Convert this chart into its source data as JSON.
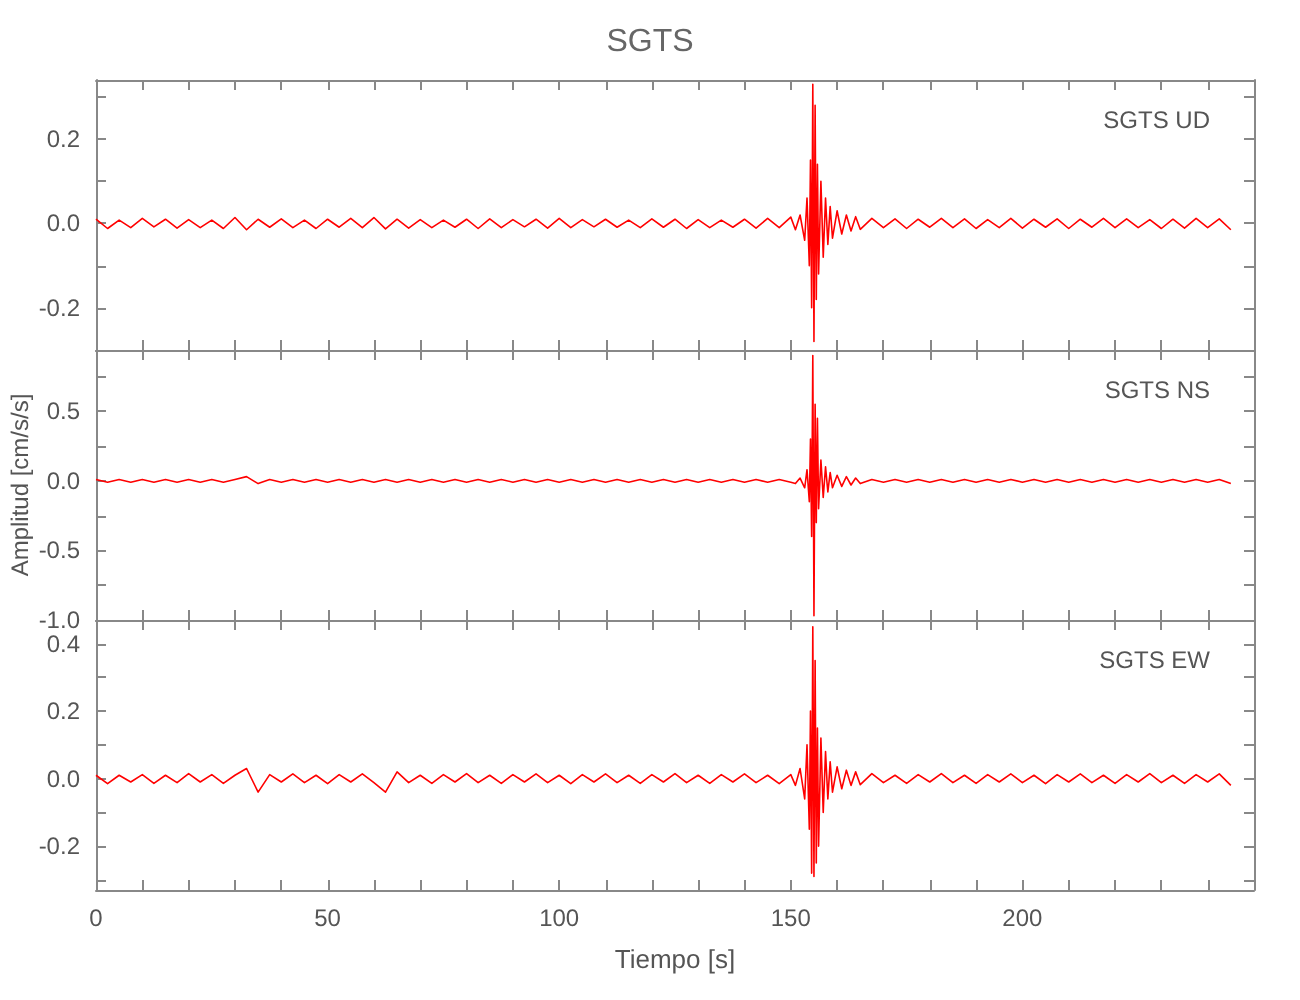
{
  "chart_data": [
    {
      "type": "line",
      "title": "SGTS",
      "annotations": [
        "SGTS UD"
      ],
      "tick_labels": "y",
      "grid": false,
      "xlim": [
        0,
        250
      ],
      "xticks": [
        0,
        {
          "value": 10,
          "label": null
        },
        {
          "value": 20,
          "label": null
        },
        {
          "value": 30,
          "label": null
        },
        {
          "value": 40,
          "label": null
        },
        50,
        {
          "value": 60,
          "label": null
        },
        {
          "value": 70,
          "label": null
        },
        {
          "value": 80,
          "label": null
        },
        {
          "value": 90,
          "label": null
        },
        100,
        {
          "value": 110,
          "label": null
        },
        {
          "value": 120,
          "label": null
        },
        {
          "value": 130,
          "label": null
        },
        {
          "value": 140,
          "label": null
        },
        150,
        {
          "value": 160,
          "label": null
        },
        {
          "value": 170,
          "label": null
        },
        {
          "value": 180,
          "label": null
        },
        {
          "value": 190,
          "label": null
        },
        200,
        {
          "value": 210,
          "label": null
        },
        {
          "value": 220,
          "label": null
        },
        {
          "value": 230,
          "label": null
        },
        {
          "value": 240,
          "label": null
        }
      ],
      "ylim": [
        -0.3,
        0.34
      ],
      "yticks": [
        {
          "value": -0.3,
          "label": null
        },
        -0.2,
        {
          "value": -0.1,
          "label": null
        },
        {
          "value": 0,
          "label": "0.0"
        },
        {
          "value": 0.1,
          "label": null
        },
        0.2,
        {
          "value": 0.3,
          "label": null
        }
      ],
      "x": [
        0,
        2.5,
        5,
        7.5,
        10,
        12.5,
        15,
        17.5,
        20,
        22.5,
        25,
        27.5,
        30,
        32.5,
        35,
        37.5,
        40,
        42.5,
        45,
        47.5,
        50,
        52.5,
        55,
        57.5,
        60,
        62.5,
        65,
        67.5,
        70,
        72.5,
        75,
        77.5,
        80,
        82.5,
        85,
        87.5,
        90,
        92.5,
        95,
        97.5,
        100,
        102.5,
        105,
        107.5,
        110,
        112.5,
        115,
        117.5,
        120,
        122.5,
        125,
        127.5,
        130,
        132.5,
        135,
        137.5,
        140,
        142.5,
        145,
        147.5,
        150,
        151,
        152,
        153,
        153.5,
        154,
        154.25,
        154.5,
        154.75,
        155,
        155.25,
        155.5,
        155.75,
        156,
        156.5,
        157,
        157.5,
        158,
        158.5,
        159,
        160,
        161,
        162,
        163,
        164,
        165,
        167.5,
        170,
        172.5,
        175,
        177.5,
        180,
        182.5,
        185,
        187.5,
        190,
        192.5,
        195,
        197.5,
        200,
        202.5,
        205,
        207.5,
        210,
        212.5,
        215,
        217.5,
        220,
        222.5,
        225,
        227.5,
        230,
        232.5,
        235,
        237.5,
        240,
        242.5,
        245
      ],
      "series": [
        {
          "color": "#ff0000",
          "values": [
            0.01,
            -0.012,
            0.008,
            -0.01,
            0.012,
            -0.008,
            0.01,
            -0.011,
            0.009,
            -0.01,
            0.008,
            -0.012,
            0.014,
            -0.015,
            0.01,
            -0.009,
            0.011,
            -0.01,
            0.008,
            -0.012,
            0.01,
            -0.009,
            0.012,
            -0.01,
            0.014,
            -0.013,
            0.01,
            -0.011,
            0.009,
            -0.01,
            0.008,
            -0.009,
            0.01,
            -0.012,
            0.011,
            -0.01,
            0.009,
            -0.008,
            0.01,
            -0.011,
            0.012,
            -0.01,
            0.009,
            -0.008,
            0.01,
            -0.009,
            0.008,
            -0.01,
            0.011,
            -0.009,
            0.01,
            -0.012,
            0.009,
            -0.01,
            0.008,
            -0.009,
            0.01,
            -0.011,
            0.012,
            -0.01,
            0.015,
            -0.015,
            0.02,
            -0.04,
            0.06,
            -0.1,
            0.15,
            -0.2,
            0.33,
            -0.28,
            0.28,
            -0.18,
            0.14,
            -0.12,
            0.1,
            -0.08,
            0.06,
            -0.05,
            0.04,
            -0.035,
            0.03,
            -0.025,
            0.02,
            -0.018,
            0.016,
            -0.014,
            0.012,
            -0.01,
            0.011,
            -0.012,
            0.01,
            -0.009,
            0.012,
            -0.01,
            0.011,
            -0.012,
            0.009,
            -0.01,
            0.012,
            -0.011,
            0.01,
            -0.009,
            0.011,
            -0.012,
            0.01,
            -0.009,
            0.012,
            -0.01,
            0.011,
            -0.01,
            0.009,
            -0.012,
            0.01,
            -0.011,
            0.012,
            -0.01,
            0.011,
            -0.015
          ]
        }
      ]
    },
    {
      "type": "line",
      "ylabel": "Amplitud [cm/s/s]",
      "annotations": [
        "SGTS NS"
      ],
      "tick_labels": "y",
      "grid": false,
      "xlim": [
        0,
        250
      ],
      "xticks": [
        0,
        {
          "value": 10,
          "label": null
        },
        {
          "value": 20,
          "label": null
        },
        {
          "value": 30,
          "label": null
        },
        {
          "value": 40,
          "label": null
        },
        50,
        {
          "value": 60,
          "label": null
        },
        {
          "value": 70,
          "label": null
        },
        {
          "value": 80,
          "label": null
        },
        {
          "value": 90,
          "label": null
        },
        100,
        {
          "value": 110,
          "label": null
        },
        {
          "value": 120,
          "label": null
        },
        {
          "value": 130,
          "label": null
        },
        {
          "value": 140,
          "label": null
        },
        150,
        {
          "value": 160,
          "label": null
        },
        {
          "value": 170,
          "label": null
        },
        {
          "value": 180,
          "label": null
        },
        {
          "value": 190,
          "label": null
        },
        200,
        {
          "value": 210,
          "label": null
        },
        {
          "value": 220,
          "label": null
        },
        {
          "value": 230,
          "label": null
        },
        {
          "value": 240,
          "label": null
        }
      ],
      "ylim": [
        -1.0,
        0.94
      ],
      "yticks": [
        {
          "value": -1,
          "label": "-1.0"
        },
        {
          "value": -0.75,
          "label": null
        },
        -0.5,
        {
          "value": -0.25,
          "label": null
        },
        {
          "value": 0,
          "label": "0.0"
        },
        {
          "value": 0.25,
          "label": null
        },
        0.5,
        {
          "value": 0.75,
          "label": null
        }
      ],
      "x": [
        0,
        2.5,
        5,
        7.5,
        10,
        12.5,
        15,
        17.5,
        20,
        22.5,
        25,
        27.5,
        30,
        32.5,
        35,
        37.5,
        40,
        42.5,
        45,
        47.5,
        50,
        52.5,
        55,
        57.5,
        60,
        62.5,
        65,
        67.5,
        70,
        72.5,
        75,
        77.5,
        80,
        82.5,
        85,
        87.5,
        90,
        92.5,
        95,
        97.5,
        100,
        102.5,
        105,
        107.5,
        110,
        112.5,
        115,
        117.5,
        120,
        122.5,
        125,
        127.5,
        130,
        132.5,
        135,
        137.5,
        140,
        142.5,
        145,
        147.5,
        150,
        151,
        152,
        153,
        153.5,
        154,
        154.25,
        154.5,
        154.75,
        155,
        155.25,
        155.5,
        155.75,
        156,
        156.5,
        157,
        157.5,
        158,
        158.5,
        159,
        160,
        161,
        162,
        163,
        164,
        165,
        167.5,
        170,
        172.5,
        175,
        177.5,
        180,
        182.5,
        185,
        187.5,
        190,
        192.5,
        195,
        197.5,
        200,
        202.5,
        205,
        207.5,
        210,
        212.5,
        215,
        217.5,
        220,
        222.5,
        225,
        227.5,
        230,
        232.5,
        235,
        237.5,
        240,
        242.5,
        245
      ],
      "series": [
        {
          "color": "#ff0000",
          "values": [
            0.01,
            -0.01,
            0.01,
            -0.01,
            0.01,
            -0.01,
            0.01,
            -0.01,
            0.01,
            -0.01,
            0.01,
            -0.01,
            0.01,
            0.03,
            -0.02,
            0.01,
            -0.01,
            0.01,
            -0.01,
            0.01,
            -0.01,
            0.01,
            -0.01,
            0.01,
            -0.01,
            0.01,
            -0.01,
            0.01,
            -0.01,
            0.01,
            -0.01,
            0.01,
            -0.01,
            0.01,
            -0.01,
            0.01,
            -0.01,
            0.01,
            -0.01,
            0.01,
            -0.01,
            0.01,
            -0.01,
            0.01,
            -0.01,
            0.01,
            -0.01,
            0.01,
            -0.01,
            0.01,
            -0.01,
            0.01,
            -0.01,
            0.01,
            -0.01,
            0.01,
            -0.01,
            0.01,
            -0.01,
            0.01,
            -0.01,
            -0.02,
            0.02,
            -0.05,
            0.08,
            -0.15,
            0.3,
            -0.4,
            0.9,
            -0.97,
            0.55,
            -0.3,
            0.45,
            -0.2,
            0.15,
            -0.12,
            0.1,
            -0.08,
            0.06,
            -0.05,
            0.04,
            -0.04,
            0.03,
            -0.03,
            0.02,
            -0.02,
            0.01,
            -0.01,
            0.01,
            -0.01,
            0.01,
            -0.01,
            0.01,
            -0.01,
            0.01,
            -0.01,
            0.01,
            -0.01,
            0.01,
            -0.01,
            0.01,
            -0.01,
            0.01,
            -0.01,
            0.01,
            -0.01,
            0.01,
            -0.01,
            0.01,
            -0.01,
            0.01,
            -0.01,
            0.01,
            -0.01,
            0.01,
            -0.01,
            0.01,
            -0.02
          ]
        }
      ]
    },
    {
      "type": "line",
      "xlabel": "Tiempo [s]",
      "annotations": [
        "SGTS EW"
      ],
      "grid": false,
      "xlim": [
        0,
        250
      ],
      "xticks": [
        0,
        {
          "value": 10,
          "label": null
        },
        {
          "value": 20,
          "label": null
        },
        {
          "value": 30,
          "label": null
        },
        {
          "value": 40,
          "label": null
        },
        50,
        {
          "value": 60,
          "label": null
        },
        {
          "value": 70,
          "label": null
        },
        {
          "value": 80,
          "label": null
        },
        {
          "value": 90,
          "label": null
        },
        100,
        {
          "value": 110,
          "label": null
        },
        {
          "value": 120,
          "label": null
        },
        {
          "value": 130,
          "label": null
        },
        {
          "value": 140,
          "label": null
        },
        150,
        {
          "value": 160,
          "label": null
        },
        {
          "value": 170,
          "label": null
        },
        {
          "value": 180,
          "label": null
        },
        {
          "value": 190,
          "label": null
        },
        200,
        {
          "value": 210,
          "label": null
        },
        {
          "value": 220,
          "label": null
        },
        {
          "value": 230,
          "label": null
        },
        {
          "value": 240,
          "label": null
        }
      ],
      "ylim": [
        -0.33,
        0.47
      ],
      "yticks": [
        {
          "value": -0.3,
          "label": null
        },
        -0.2,
        {
          "value": -0.1,
          "label": null
        },
        {
          "value": 0,
          "label": "0.0"
        },
        {
          "value": 0.1,
          "label": null
        },
        0.2,
        {
          "value": 0.3,
          "label": null
        },
        0.4
      ],
      "x": [
        0,
        2.5,
        5,
        7.5,
        10,
        12.5,
        15,
        17.5,
        20,
        22.5,
        25,
        27.5,
        30,
        32.5,
        35,
        37.5,
        40,
        42.5,
        45,
        47.5,
        50,
        52.5,
        55,
        57.5,
        60,
        62.5,
        65,
        67.5,
        70,
        72.5,
        75,
        77.5,
        80,
        82.5,
        85,
        87.5,
        90,
        92.5,
        95,
        97.5,
        100,
        102.5,
        105,
        107.5,
        110,
        112.5,
        115,
        117.5,
        120,
        122.5,
        125,
        127.5,
        130,
        132.5,
        135,
        137.5,
        140,
        142.5,
        145,
        147.5,
        150,
        151,
        152,
        153,
        153.5,
        154,
        154.25,
        154.5,
        154.75,
        155,
        155.25,
        155.5,
        155.75,
        156,
        156.5,
        157,
        157.5,
        158,
        158.5,
        159,
        160,
        161,
        162,
        163,
        164,
        165,
        167.5,
        170,
        172.5,
        175,
        177.5,
        180,
        182.5,
        185,
        187.5,
        190,
        192.5,
        195,
        197.5,
        200,
        202.5,
        205,
        207.5,
        210,
        212.5,
        215,
        217.5,
        220,
        222.5,
        225,
        227.5,
        230,
        232.5,
        235,
        237.5,
        240,
        242.5,
        245
      ],
      "series": [
        {
          "color": "#ff0000",
          "values": [
            0.01,
            -0.015,
            0.01,
            -0.01,
            0.012,
            -0.014,
            0.01,
            -0.012,
            0.015,
            -0.01,
            0.012,
            -0.014,
            0.01,
            0.03,
            -0.04,
            0.012,
            -0.01,
            0.014,
            -0.012,
            0.01,
            -0.015,
            0.012,
            -0.01,
            0.014,
            -0.012,
            -0.04,
            0.02,
            -0.012,
            0.01,
            -0.014,
            0.012,
            -0.01,
            0.015,
            -0.012,
            0.01,
            -0.014,
            0.012,
            -0.01,
            0.014,
            -0.012,
            0.01,
            -0.015,
            0.012,
            -0.01,
            0.014,
            -0.012,
            0.01,
            -0.014,
            0.012,
            -0.01,
            0.015,
            -0.012,
            0.01,
            -0.014,
            0.012,
            -0.01,
            0.014,
            -0.012,
            0.01,
            -0.015,
            0.012,
            -0.02,
            0.03,
            -0.06,
            0.1,
            -0.15,
            0.2,
            -0.28,
            0.45,
            -0.29,
            0.35,
            -0.25,
            0.15,
            -0.2,
            0.12,
            -0.1,
            0.08,
            -0.06,
            0.05,
            -0.04,
            0.035,
            -0.03,
            0.025,
            -0.02,
            0.02,
            -0.018,
            0.015,
            -0.012,
            0.01,
            -0.014,
            0.012,
            -0.01,
            0.015,
            -0.012,
            0.01,
            -0.014,
            0.012,
            -0.01,
            0.014,
            -0.012,
            0.01,
            -0.015,
            0.012,
            -0.01,
            0.014,
            -0.012,
            0.01,
            -0.014,
            0.012,
            -0.01,
            0.015,
            -0.012,
            0.01,
            -0.014,
            0.012,
            -0.01,
            0.014,
            -0.02
          ]
        }
      ]
    }
  ]
}
